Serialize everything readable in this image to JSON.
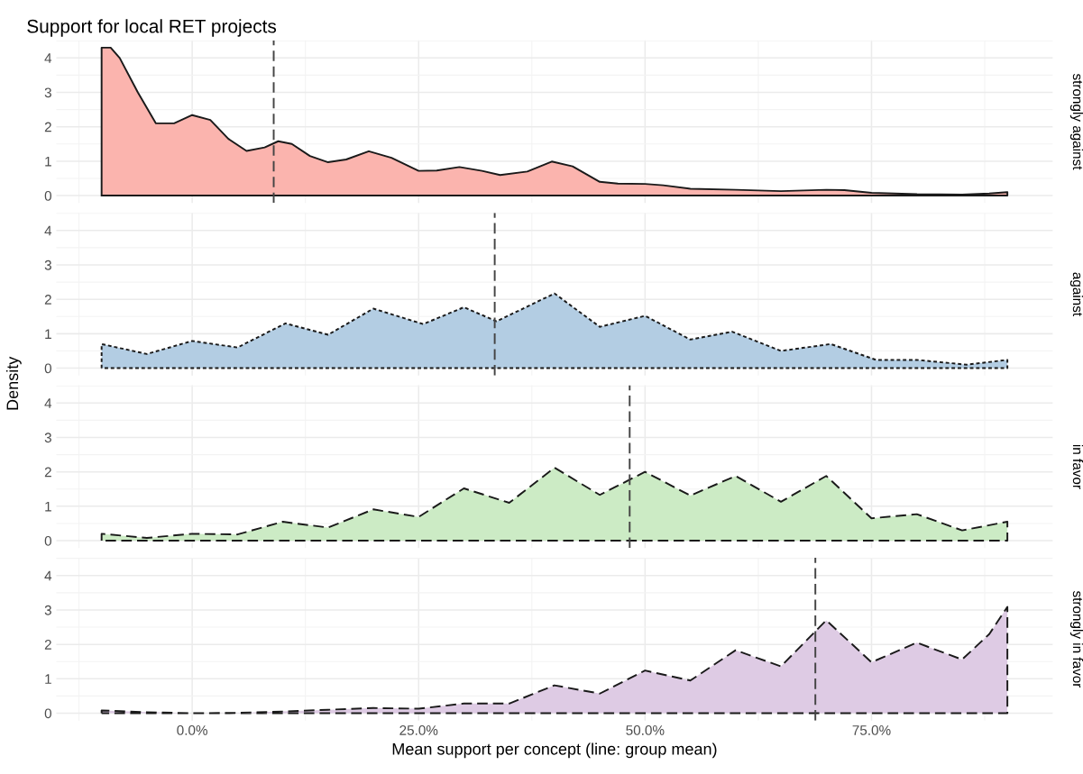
{
  "chart_data": [
    {
      "type": "area",
      "title": "Support for local RET projects",
      "y2label": "strongly against",
      "xlim": [
        -15,
        95
      ],
      "xticks": [
        0,
        25,
        50,
        75
      ],
      "ylim": [
        -0.215,
        4.515
      ],
      "yticks": [
        0,
        1,
        2,
        3,
        4
      ],
      "tick_labels": "y",
      "grid": true,
      "line_style": "solid",
      "series": [
        {
          "color": "#fbb4ae",
          "x": [
            -10,
            -9,
            -8,
            -6,
            -4,
            -2,
            0,
            2,
            4,
            6,
            8,
            9.5,
            11,
            13,
            15,
            17,
            19.5,
            22,
            25,
            27,
            29.5,
            32,
            34,
            37,
            39.7,
            42,
            45,
            47,
            50,
            52,
            55,
            60,
            65,
            70,
            72,
            75,
            80,
            85,
            88,
            90
          ],
          "values": [
            4.3,
            4.3,
            4.0,
            3.0,
            2.1,
            2.1,
            2.34,
            2.2,
            1.65,
            1.3,
            1.4,
            1.58,
            1.5,
            1.15,
            0.97,
            1.05,
            1.29,
            1.1,
            0.72,
            0.73,
            0.83,
            0.72,
            0.6,
            0.7,
            0.99,
            0.85,
            0.4,
            0.35,
            0.34,
            0.3,
            0.2,
            0.17,
            0.13,
            0.17,
            0.16,
            0.08,
            0.04,
            0.03,
            0.06,
            0.1
          ]
        }
      ],
      "ref_lines": [
        {
          "axis": "x",
          "value": 9,
          "line_style": "dashed"
        }
      ]
    },
    {
      "type": "area",
      "ylabel": "Density",
      "y2label": "against",
      "xlim": [
        -15,
        95
      ],
      "xticks": [
        0,
        25,
        50,
        75
      ],
      "ylim": [
        -0.215,
        4.515
      ],
      "yticks": [
        0,
        1,
        2,
        3,
        4
      ],
      "tick_labels": "y",
      "grid": true,
      "line_style": "dotted",
      "series": [
        {
          "color": "#b3cde3",
          "x": [
            -10,
            -5,
            0,
            5,
            10.3,
            15,
            20,
            25.5,
            30,
            33.6,
            40,
            45,
            50,
            55,
            59.6,
            65,
            70.5,
            75.5,
            80,
            85.5,
            90
          ],
          "values": [
            0.7,
            0.41,
            0.79,
            0.6,
            1.3,
            0.97,
            1.73,
            1.28,
            1.77,
            1.36,
            2.17,
            1.2,
            1.52,
            0.83,
            1.06,
            0.5,
            0.7,
            0.24,
            0.24,
            0.1,
            0.24
          ]
        }
      ],
      "ref_lines": [
        {
          "axis": "x",
          "value": 33.4,
          "line_style": "dashed"
        }
      ]
    },
    {
      "type": "area",
      "y2label": "in favor",
      "xlim": [
        -15,
        95
      ],
      "xticks": [
        0,
        25,
        50,
        75
      ],
      "ylim": [
        -0.215,
        4.515
      ],
      "yticks": [
        0,
        1,
        2,
        3,
        4
      ],
      "tick_labels": "y",
      "grid": true,
      "line_style": "dashed",
      "series": [
        {
          "color": "#ccebc5",
          "x": [
            -10,
            -5,
            0,
            5,
            10,
            15,
            20,
            25,
            30,
            35,
            40,
            45,
            50,
            55,
            60,
            65,
            70,
            75,
            80,
            85,
            90
          ],
          "values": [
            0.2,
            0.08,
            0.2,
            0.18,
            0.55,
            0.38,
            0.91,
            0.69,
            1.52,
            1.1,
            2.12,
            1.33,
            2.0,
            1.31,
            1.88,
            1.13,
            1.88,
            0.65,
            0.77,
            0.3,
            0.55
          ]
        }
      ],
      "ref_lines": [
        {
          "axis": "x",
          "value": 48.3,
          "line_style": "dashed"
        }
      ]
    },
    {
      "type": "area",
      "xlabel": "Mean support per concept (line: group mean)",
      "y2label": "strongly in favor",
      "xlim": [
        -15,
        95
      ],
      "xticks": [
        {
          "value": 0,
          "label": "0.0%"
        },
        {
          "value": 25,
          "label": "25.0%"
        },
        {
          "value": 50,
          "label": "50.0%"
        },
        {
          "value": 75,
          "label": "75.0%"
        }
      ],
      "ylim": [
        -0.215,
        4.515
      ],
      "yticks": [
        0,
        1,
        2,
        3,
        4
      ],
      "grid": true,
      "line_style": "dashed",
      "series": [
        {
          "color": "#decbe4",
          "x": [
            -10,
            -5,
            0,
            5,
            10,
            15,
            20,
            25,
            30,
            35,
            40,
            45,
            50,
            55,
            60,
            65,
            70,
            75,
            80,
            85,
            88,
            90
          ],
          "values": [
            0.08,
            0.03,
            0.0,
            0.01,
            0.05,
            0.1,
            0.15,
            0.13,
            0.28,
            0.28,
            0.81,
            0.57,
            1.24,
            0.95,
            1.83,
            1.36,
            2.7,
            1.48,
            2.05,
            1.56,
            2.3,
            3.09
          ]
        }
      ],
      "ref_lines": [
        {
          "axis": "x",
          "value": 68.8,
          "line_style": "dashed"
        }
      ]
    }
  ]
}
